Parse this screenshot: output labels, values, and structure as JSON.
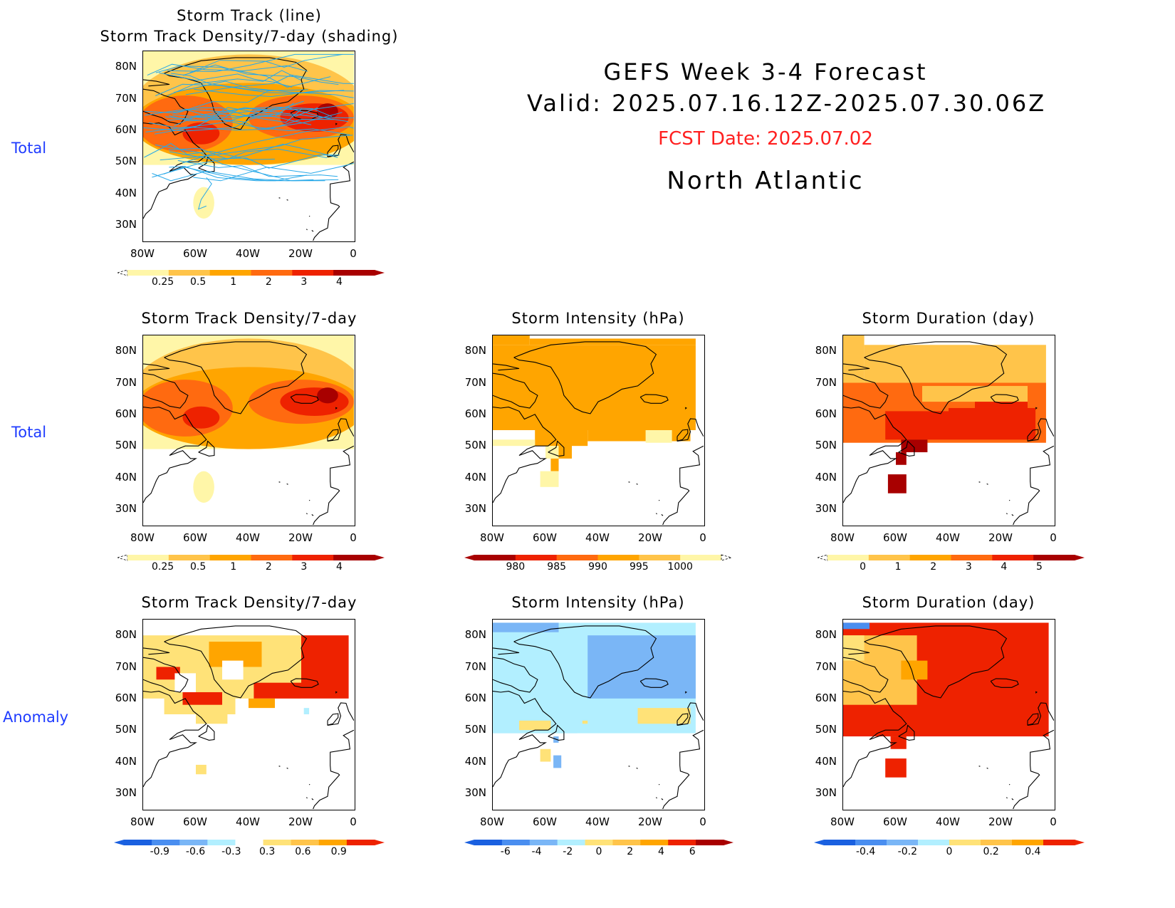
{
  "header": {
    "title": "GEFS Week 3-4 Forecast",
    "valid": "Valid: 2025.07.16.12Z-2025.07.30.06Z",
    "fcst_date": "FCST Date: 2025.07.02",
    "region": "North Atlantic"
  },
  "rows": [
    {
      "label": "Total"
    },
    {
      "label": "Total"
    },
    {
      "label": "Anomaly"
    }
  ],
  "axes": {
    "lat_ticks": [
      "80N",
      "70N",
      "60N",
      "50N",
      "40N",
      "30N"
    ],
    "lon_ticks": [
      "80W",
      "60W",
      "40W",
      "20W",
      "0"
    ]
  },
  "colors": {
    "yellow_light": "#fff6a8",
    "yellow": "#ffe278",
    "orange_light": "#ffc44a",
    "orange": "#ffa500",
    "orange_dark": "#ff6a10",
    "red": "#ee2200",
    "red_dark": "#a80000",
    "blue_light": "#b2efff",
    "blue_mid": "#7ab6f6",
    "blue": "#4a8ef0",
    "blue_dark": "#1a60e0",
    "track_line": "#27a8e8"
  },
  "chart_data": [
    {
      "type": "heatmap",
      "id": "p1",
      "title": "Storm Track (line)",
      "subtitle": "Storm Track Density/7-day (shading)",
      "colorbar": {
        "labels": [
          "0.25",
          "0.5",
          "1",
          "2",
          "3",
          "4"
        ]
      },
      "overlay": "storm track lines"
    },
    {
      "type": "heatmap",
      "id": "p2",
      "title": "Storm Track Density/7-day",
      "colorbar": {
        "labels": [
          "0.25",
          "0.5",
          "1",
          "2",
          "3",
          "4"
        ]
      }
    },
    {
      "type": "heatmap",
      "id": "p3",
      "title": "Storm Intensity (hPa)",
      "colorbar": {
        "labels": [
          "980",
          "985",
          "990",
          "995",
          "1000"
        ]
      }
    },
    {
      "type": "heatmap",
      "id": "p4",
      "title": "Storm Duration (day)",
      "colorbar": {
        "labels": [
          "0",
          "1",
          "2",
          "3",
          "4",
          "5"
        ]
      }
    },
    {
      "type": "heatmap",
      "id": "p5",
      "title": "Storm Track Density/7-day",
      "colorbar": {
        "labels": [
          "-0.9",
          "-0.6",
          "-0.3",
          "0.3",
          "0.6",
          "0.9"
        ]
      }
    },
    {
      "type": "heatmap",
      "id": "p6",
      "title": "Storm Intensity (hPa)",
      "colorbar": {
        "labels": [
          "-6",
          "-4",
          "-2",
          "0",
          "2",
          "4",
          "6"
        ]
      }
    },
    {
      "type": "heatmap",
      "id": "p7",
      "title": "Storm Duration (day)",
      "colorbar": {
        "labels": [
          "-0.4",
          "-0.2",
          "0",
          "0.2",
          "0.4"
        ]
      }
    }
  ]
}
